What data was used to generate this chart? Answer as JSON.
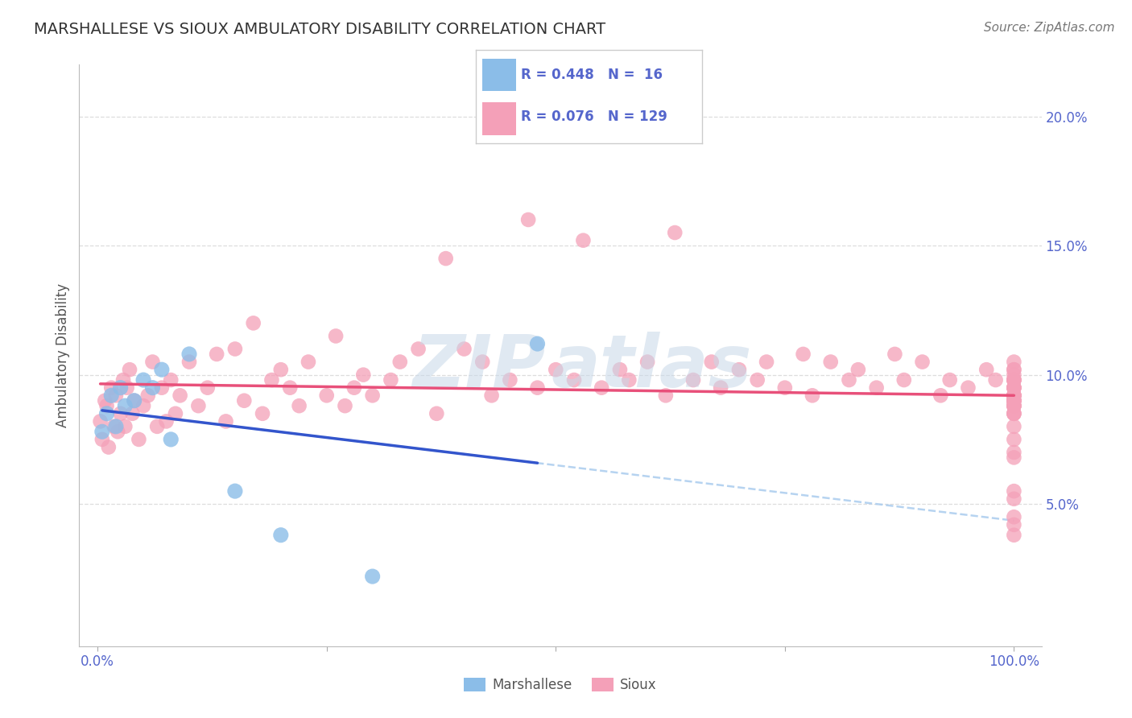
{
  "title": "MARSHALLESE VS SIOUX AMBULATORY DISABILITY CORRELATION CHART",
  "source": "Source: ZipAtlas.com",
  "ylabel": "Ambulatory Disability",
  "xlim_min": -2,
  "xlim_max": 103,
  "ylim_min": -0.5,
  "ylim_max": 22,
  "marshallese_color": "#8bbde8",
  "sioux_color": "#f4a0b8",
  "marshallese_line_color": "#3355cc",
  "sioux_line_color": "#e8507a",
  "marshallese_dashed_color": "#aaccee",
  "title_color": "#333333",
  "axis_label_color": "#555555",
  "tick_color": "#5566cc",
  "grid_color": "#dddddd",
  "background_color": "#ffffff",
  "watermark_color": "#c8d8e8",
  "R_marsh": 0.448,
  "N_marsh": 16,
  "R_sioux": 0.076,
  "N_sioux": 129,
  "marsh_x": [
    0.5,
    1.0,
    1.5,
    2.0,
    2.5,
    3.0,
    4.0,
    5.0,
    6.0,
    7.0,
    8.0,
    10.0,
    15.0,
    20.0,
    30.0,
    48.0
  ],
  "marsh_y": [
    7.8,
    8.5,
    9.2,
    8.0,
    9.5,
    8.8,
    9.0,
    9.8,
    9.5,
    10.2,
    7.5,
    10.8,
    5.5,
    3.8,
    2.2,
    11.2
  ],
  "sioux_x": [
    0.3,
    0.5,
    0.8,
    1.0,
    1.2,
    1.5,
    1.8,
    2.0,
    2.2,
    2.5,
    2.8,
    3.0,
    3.2,
    3.5,
    3.8,
    4.0,
    4.5,
    5.0,
    5.5,
    6.0,
    6.5,
    7.0,
    7.5,
    8.0,
    8.5,
    9.0,
    10.0,
    11.0,
    12.0,
    13.0,
    14.0,
    15.0,
    16.0,
    17.0,
    18.0,
    19.0,
    20.0,
    21.0,
    22.0,
    23.0,
    25.0,
    26.0,
    27.0,
    28.0,
    29.0,
    30.0,
    32.0,
    33.0,
    35.0,
    37.0,
    38.0,
    40.0,
    42.0,
    43.0,
    45.0,
    47.0,
    48.0,
    50.0,
    52.0,
    53.0,
    55.0,
    57.0,
    58.0,
    60.0,
    62.0,
    63.0,
    65.0,
    67.0,
    68.0,
    70.0,
    72.0,
    73.0,
    75.0,
    77.0,
    78.0,
    80.0,
    82.0,
    83.0,
    85.0,
    87.0,
    88.0,
    90.0,
    92.0,
    93.0,
    95.0,
    97.0,
    98.0,
    100.0,
    100.0,
    100.0,
    100.0,
    100.0,
    100.0,
    100.0,
    100.0,
    100.0,
    100.0,
    100.0,
    100.0,
    100.0,
    100.0,
    100.0,
    100.0,
    100.0,
    100.0,
    100.0,
    100.0,
    100.0,
    100.0,
    100.0,
    100.0,
    100.0,
    100.0,
    100.0,
    100.0,
    100.0,
    100.0,
    100.0,
    100.0,
    100.0,
    100.0,
    100.0,
    100.0,
    100.0,
    100.0
  ],
  "sioux_y": [
    8.2,
    7.5,
    9.0,
    8.8,
    7.2,
    9.5,
    8.0,
    9.2,
    7.8,
    8.5,
    9.8,
    8.0,
    9.5,
    10.2,
    8.5,
    9.0,
    7.5,
    8.8,
    9.2,
    10.5,
    8.0,
    9.5,
    8.2,
    9.8,
    8.5,
    9.2,
    10.5,
    8.8,
    9.5,
    10.8,
    8.2,
    11.0,
    9.0,
    12.0,
    8.5,
    9.8,
    10.2,
    9.5,
    8.8,
    10.5,
    9.2,
    11.5,
    8.8,
    9.5,
    10.0,
    9.2,
    9.8,
    10.5,
    11.0,
    8.5,
    14.5,
    11.0,
    10.5,
    9.2,
    9.8,
    16.0,
    9.5,
    10.2,
    9.8,
    15.2,
    9.5,
    10.2,
    9.8,
    10.5,
    9.2,
    15.5,
    9.8,
    10.5,
    9.5,
    10.2,
    9.8,
    10.5,
    9.5,
    10.8,
    9.2,
    10.5,
    9.8,
    10.2,
    9.5,
    10.8,
    9.8,
    10.5,
    9.2,
    9.8,
    9.5,
    10.2,
    9.8,
    8.5,
    9.2,
    8.8,
    9.5,
    9.0,
    8.8,
    9.5,
    9.2,
    10.0,
    9.8,
    10.5,
    9.2,
    8.8,
    9.5,
    9.0,
    10.2,
    9.8,
    8.5,
    9.2,
    9.8,
    8.0,
    9.5,
    10.2,
    9.0,
    5.5,
    3.8,
    4.5,
    7.0,
    7.5,
    8.8,
    5.2,
    6.8,
    4.2,
    9.0,
    8.5,
    9.8,
    9.2,
    9.0
  ]
}
